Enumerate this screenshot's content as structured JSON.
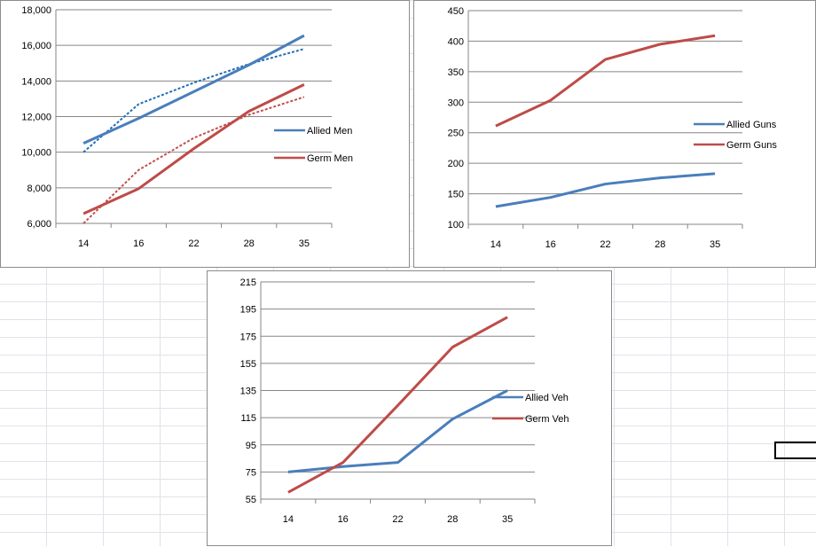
{
  "colors": {
    "allied": "#4a7ebb",
    "germ": "#be4b48",
    "grid": "#868686",
    "trend_allied": "#1f6fb5",
    "trend_germ": "#c0504d"
  },
  "chart_data": [
    {
      "id": "men",
      "type": "line",
      "categories": [
        "14",
        "16",
        "22",
        "28",
        "35"
      ],
      "ylim": [
        6000,
        18000
      ],
      "ystep": 2000,
      "yformat": "comma",
      "series": [
        {
          "name": "Allied Men",
          "color": "#4a7ebb",
          "values": [
            10500,
            11900,
            13400,
            14900,
            16550
          ]
        },
        {
          "name": "Germ Men",
          "color": "#be4b48",
          "values": [
            6550,
            7950,
            10200,
            12300,
            13800
          ]
        }
      ],
      "trendlines": [
        {
          "series": "Allied Men",
          "style": "dotted",
          "color": "#1f6fb5",
          "values": [
            10000,
            12700,
            13900,
            14950,
            15800
          ]
        },
        {
          "series": "Germ Men",
          "style": "dotted",
          "color": "#c0504d",
          "values": [
            6000,
            9000,
            10800,
            12100,
            13100
          ]
        }
      ]
    },
    {
      "id": "guns",
      "type": "line",
      "categories": [
        "14",
        "16",
        "22",
        "28",
        "35"
      ],
      "ylim": [
        100,
        450
      ],
      "ystep": 50,
      "yformat": "plain",
      "series": [
        {
          "name": "Allied Guns",
          "color": "#4a7ebb",
          "values": [
            129,
            144,
            166,
            176,
            183
          ]
        },
        {
          "name": "Germ Guns",
          "color": "#be4b48",
          "values": [
            261,
            303,
            370,
            395,
            409
          ]
        }
      ]
    },
    {
      "id": "veh",
      "type": "line",
      "categories": [
        "14",
        "16",
        "22",
        "28",
        "35"
      ],
      "ylim": [
        55,
        215
      ],
      "ystep": 20,
      "yformat": "plain",
      "series": [
        {
          "name": "Allied Veh",
          "color": "#4a7ebb",
          "values": [
            75,
            79,
            82,
            114,
            135
          ]
        },
        {
          "name": "Germ Veh",
          "color": "#be4b48",
          "values": [
            60,
            82,
            124,
            167,
            189
          ]
        }
      ]
    }
  ]
}
